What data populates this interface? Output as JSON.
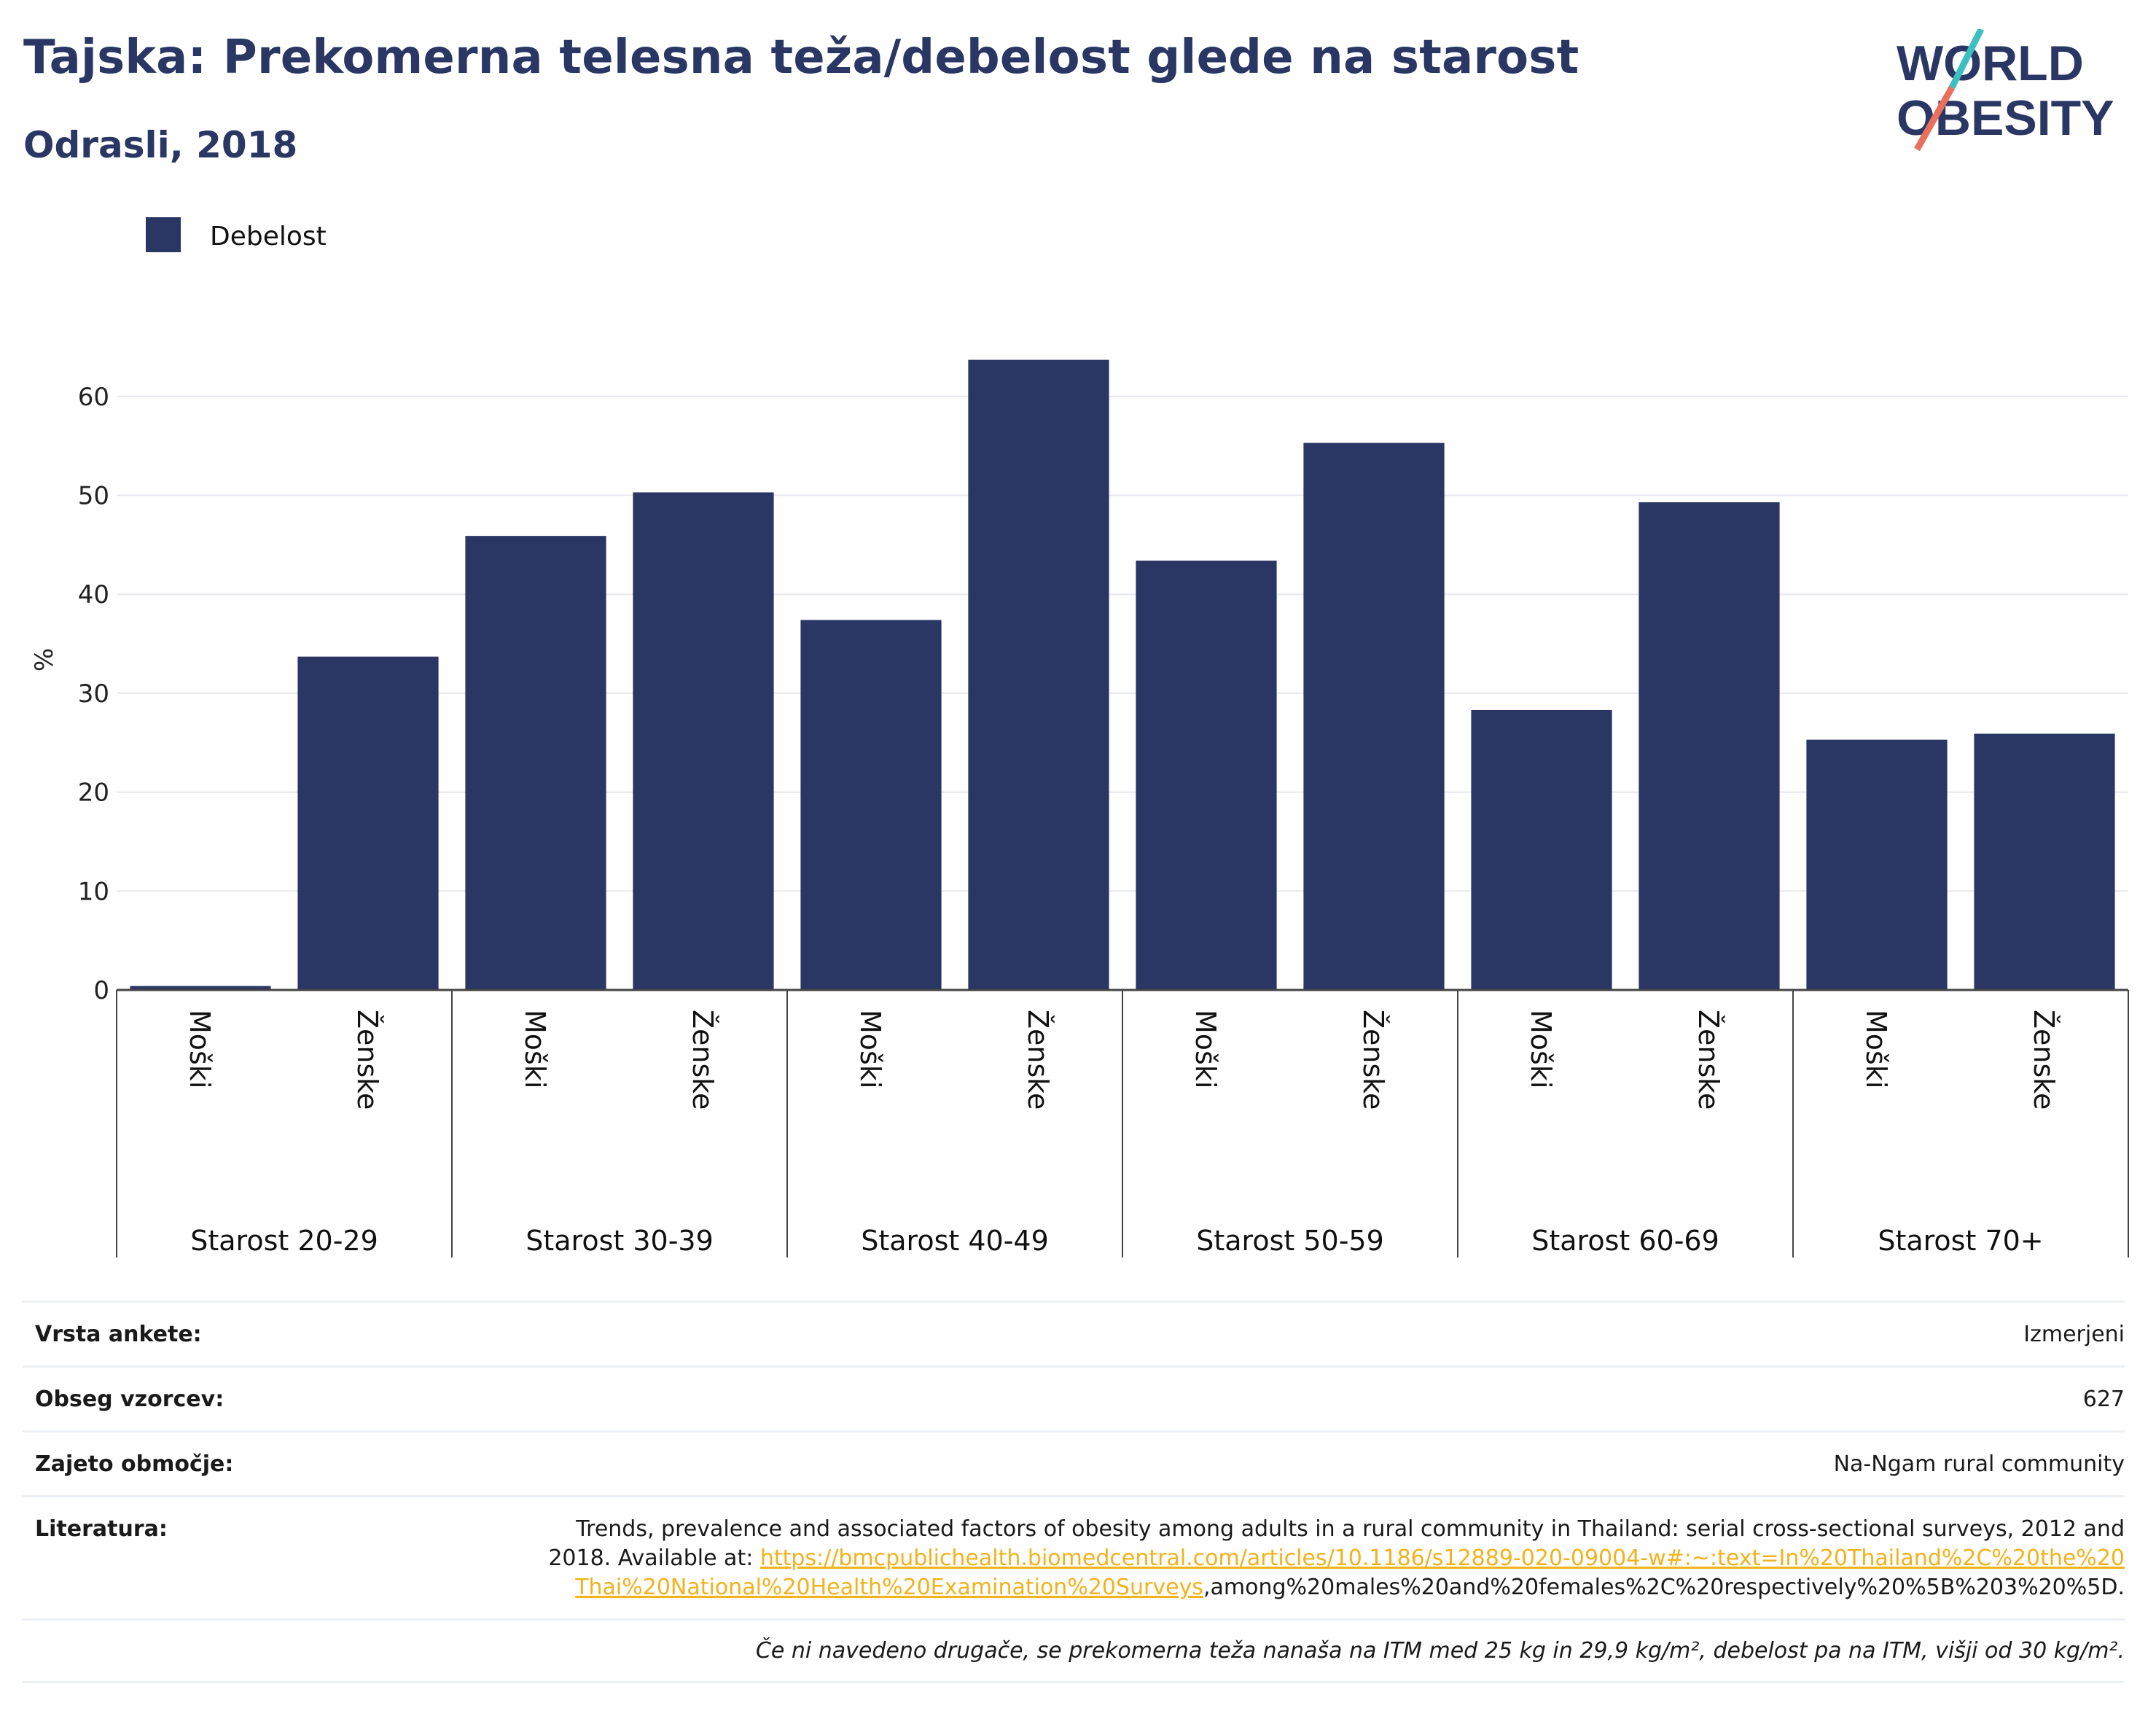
{
  "header": {
    "title": "Tajska: Prekomerna telesna teža/debelost glede na starost",
    "subtitle": "Odrasli, 2018"
  },
  "logo": {
    "line1": "WORLD",
    "line2": "OBESITY"
  },
  "colors": {
    "bar": "#2a3663",
    "title": "#2a3663",
    "link": "#f2b21b",
    "logo_teal": "#3bbfc0",
    "logo_coral": "#e8705c"
  },
  "chart_data": {
    "type": "bar",
    "legend": [
      "Debelost"
    ],
    "legend_position": "top-left",
    "ylabel": "%",
    "ylim": [
      0,
      65
    ],
    "yticks": [
      0,
      10,
      20,
      30,
      40,
      50,
      60
    ],
    "grid": true,
    "groups": [
      "Starost 20-29",
      "Starost 30-39",
      "Starost 40-49",
      "Starost 50-59",
      "Starost 60-69",
      "Starost 70+"
    ],
    "subcategories": [
      "Moški",
      "Ženske"
    ],
    "series": [
      {
        "name": "Debelost",
        "values": [
          0.4,
          33.7,
          45.9,
          50.3,
          37.4,
          63.7,
          43.4,
          55.3,
          28.3,
          49.3,
          25.3,
          25.9
        ]
      }
    ]
  },
  "info": {
    "survey_label": "Vrsta ankete:",
    "survey_value": "Izmerjeni",
    "sample_label": "Obseg vzorcev:",
    "sample_value": "627",
    "area_label": "Zajeto območje:",
    "area_value": "Na-Ngam rural community",
    "ref_label": "Literatura:",
    "ref_text": "Trends, prevalence and associated factors of obesity among adults in a rural community in Thailand: serial cross-sectional surveys, 2012 and 2018. Available at: ",
    "ref_link": "https://bmcpublichealth.biomedcentral.com/articles/10.1186/s12889-020-09004-w#:~:text=In%20Thailand%2C%20the%20Thai%20National%20Health%20Examination%20Surveys",
    "ref_tail": ",among%20males%20and%20females%2C%20respectively%20%5B%203%20%5D.",
    "note": "Če ni navedeno drugače, se prekomerna teža nanaša na ITM med 25 kg in 29,9 kg/m², debelost pa na ITM, višji od 30 kg/m²."
  }
}
